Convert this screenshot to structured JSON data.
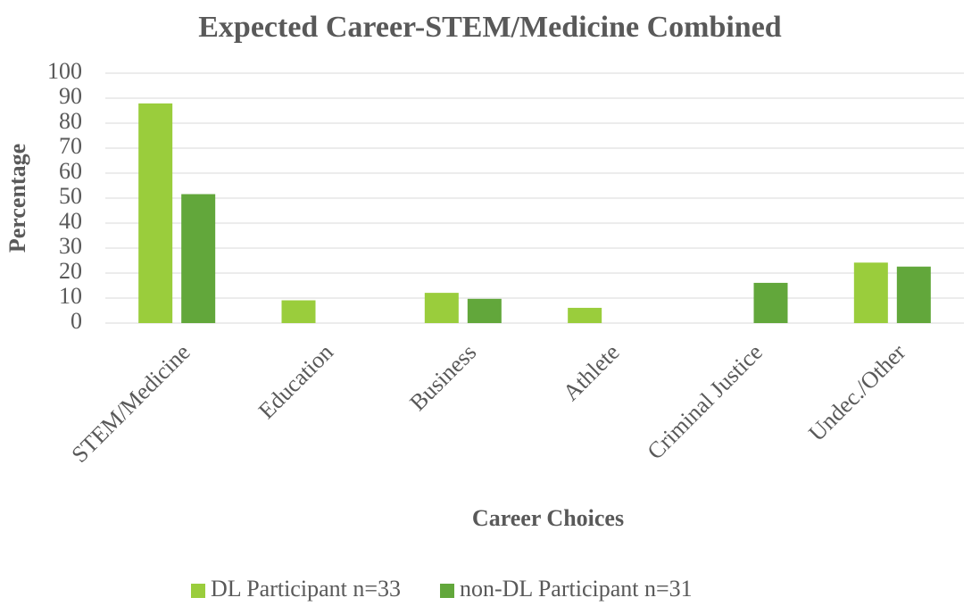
{
  "chart_data": {
    "type": "bar",
    "title": "Expected Career-STEM/Medicine Combined",
    "x_label": "Career Choices",
    "y_label": "Percentage",
    "categories": [
      "STEM/Medicine",
      "Education",
      "Business",
      "Athlete",
      "Criminal Justice",
      "Undec./Other"
    ],
    "series": [
      {
        "name": "DL Participant n=33",
        "color": "#9acd3c",
        "values": [
          87.9,
          9.1,
          12.1,
          6.1,
          0,
          24.2
        ]
      },
      {
        "name": "non-DL Participant n=31",
        "color": "#62a73b",
        "values": [
          51.6,
          0,
          9.7,
          0,
          16.1,
          22.6
        ]
      }
    ],
    "ylim": [
      0,
      100
    ],
    "yticks": [
      0,
      10,
      20,
      30,
      40,
      50,
      60,
      70,
      80,
      90,
      100
    ],
    "grid": true,
    "legend": "bottom"
  }
}
